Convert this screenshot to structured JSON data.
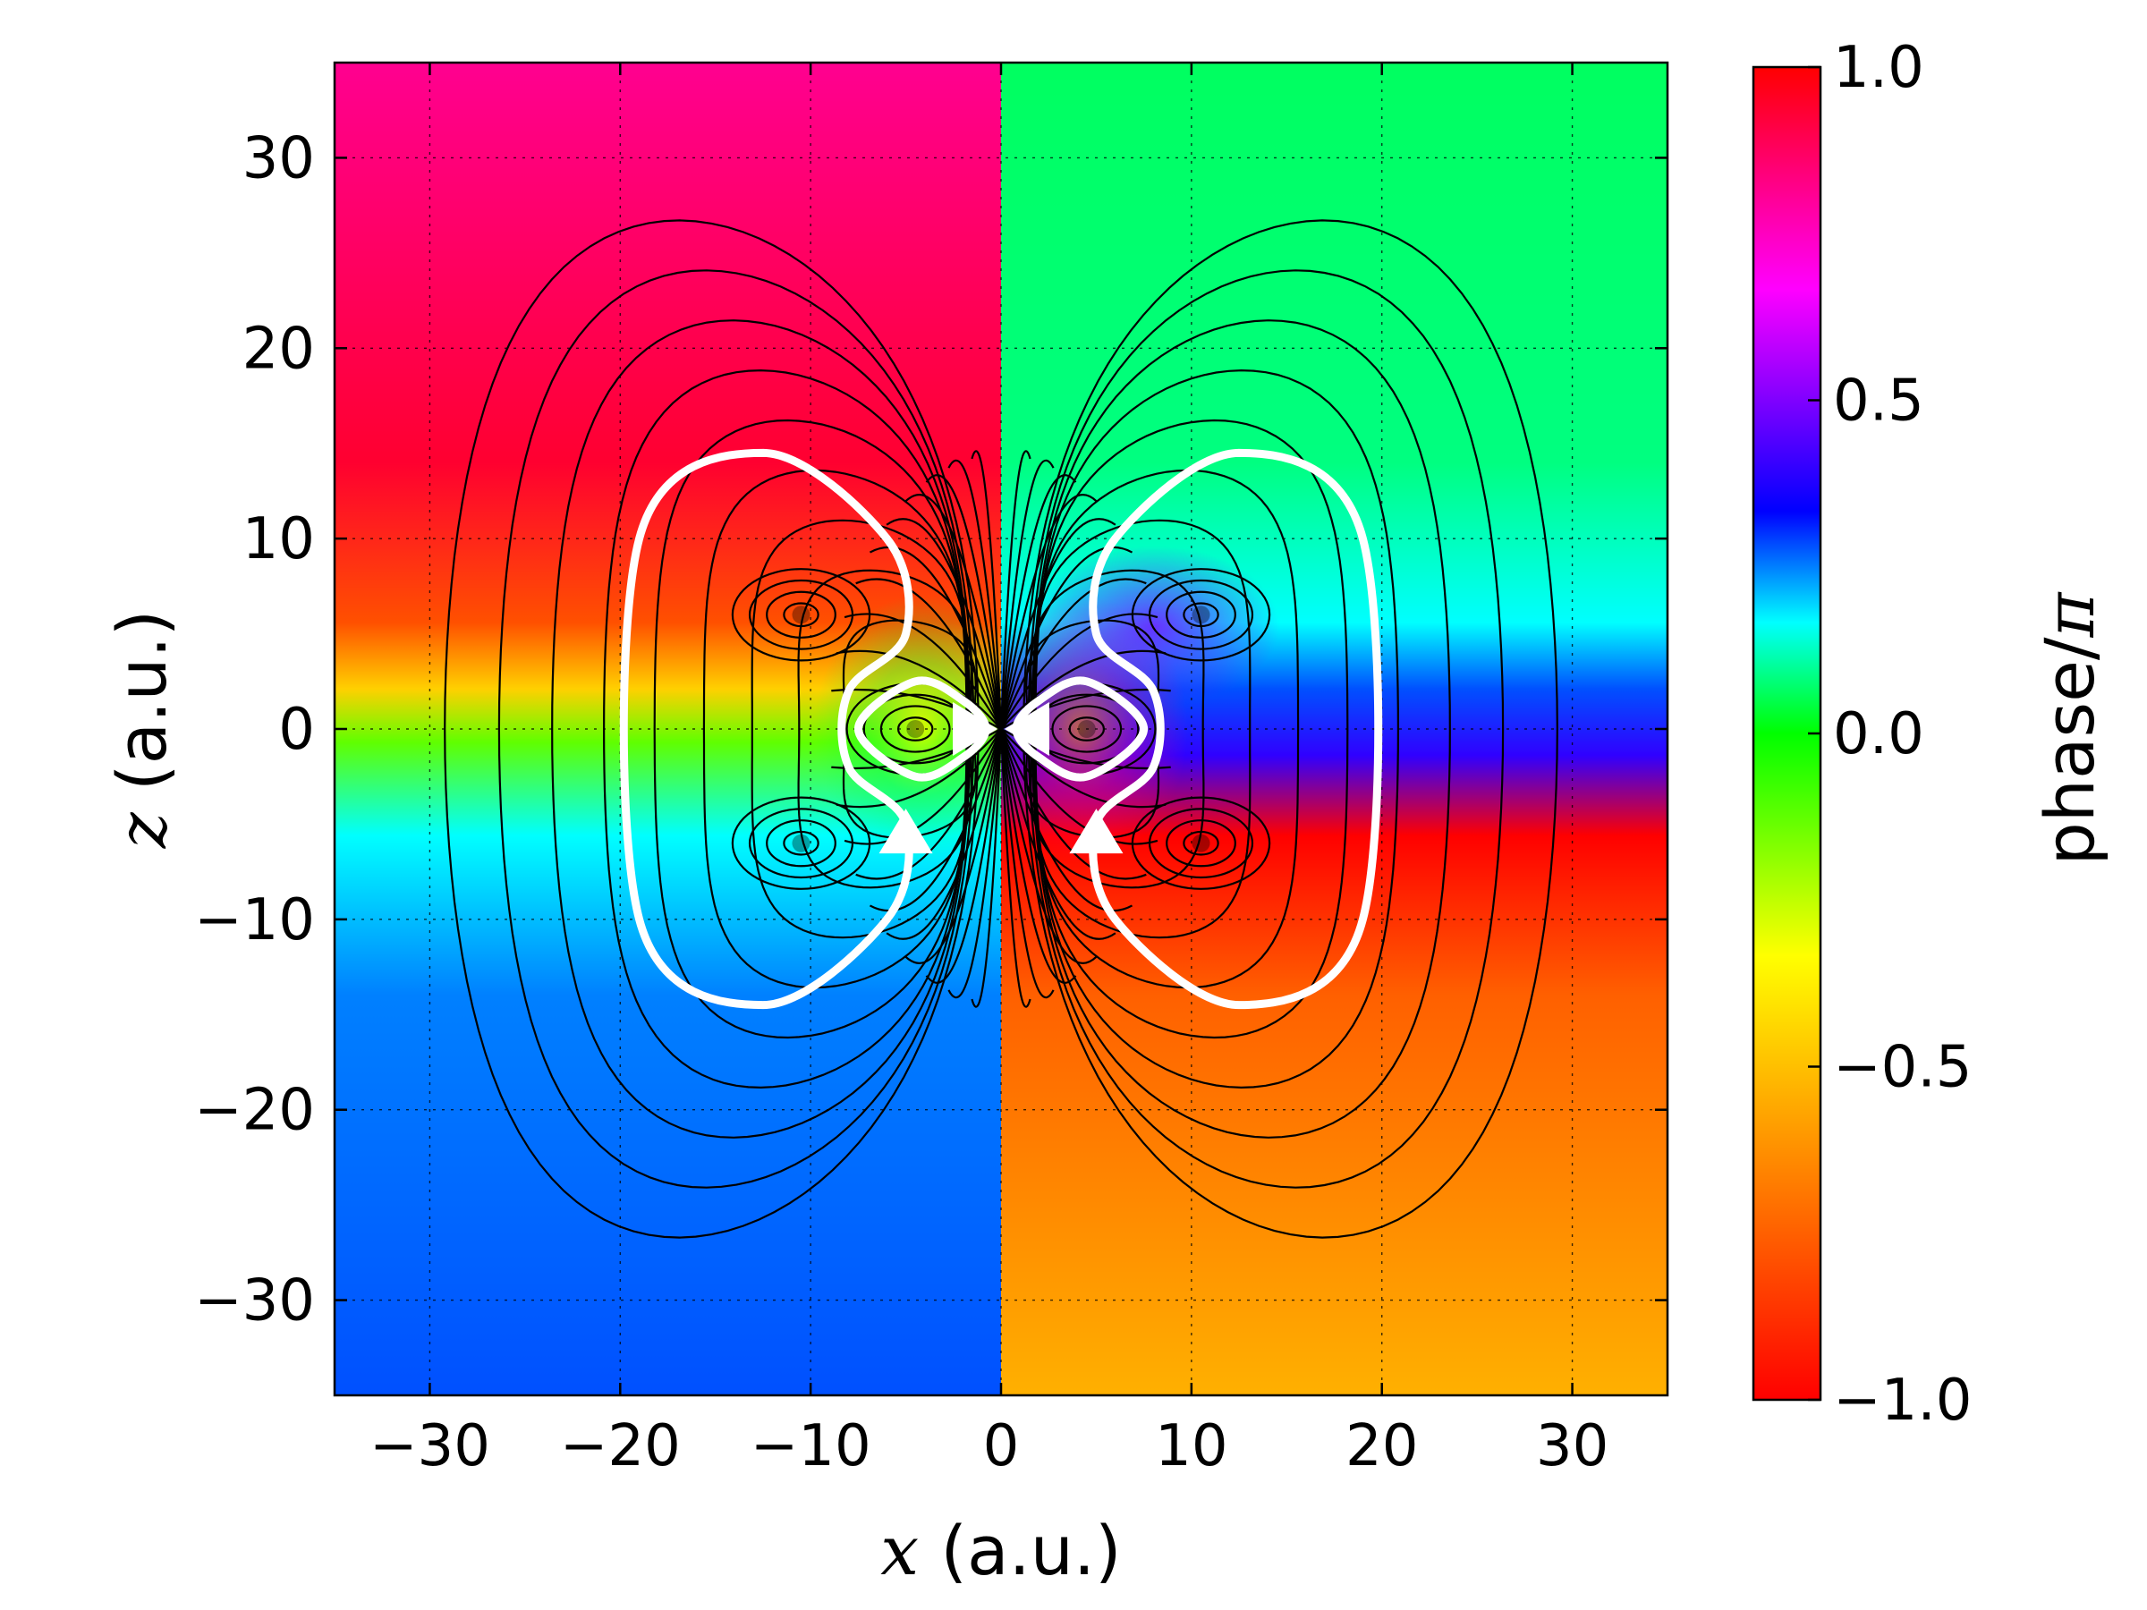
{
  "chart_data": {
    "type": "heatmap",
    "title": "",
    "xlabel": {
      "symbol": "x",
      "unit": "(a.u.)"
    },
    "ylabel": {
      "symbol": "z",
      "unit": "(a.u.)"
    },
    "xlim": [
      -35,
      35
    ],
    "ylim": [
      -35,
      35
    ],
    "x_ticks": [
      -30,
      -20,
      -10,
      0,
      10,
      20,
      30
    ],
    "y_ticks": [
      -30,
      -20,
      -10,
      0,
      10,
      20,
      30
    ],
    "x_tick_labels": [
      "−30",
      "−20",
      "−10",
      "0",
      "10",
      "20",
      "30"
    ],
    "y_tick_labels": [
      "−30",
      "−20",
      "−10",
      "0",
      "10",
      "20",
      "30"
    ],
    "grid": true,
    "colorbar": {
      "label": {
        "text": "phase/",
        "symbol": "π"
      },
      "range": [
        -1.0,
        1.0
      ],
      "ticks": [
        -1.0,
        -0.5,
        0.0,
        0.5,
        1.0
      ],
      "tick_labels": [
        "−1.0",
        "−0.5",
        "0.0",
        "0.5",
        "1.0"
      ],
      "colormap": "hsv",
      "stops": [
        "#ff0000",
        "#ff8000",
        "#ffff00",
        "#00ff00",
        "#00ffff",
        "#0000ff",
        "#ff00ff",
        "#ff0000"
      ]
    },
    "contour_color": "#000000",
    "streamline_color": "#ffffff",
    "vortex_points": [
      {
        "x": -10.5,
        "z": 6.0
      },
      {
        "x": -10.5,
        "z": -6.0
      },
      {
        "x": 10.5,
        "z": 6.0
      },
      {
        "x": 10.5,
        "z": -6.0
      },
      {
        "x": -4.5,
        "z": 0.0
      },
      {
        "x": 4.5,
        "z": 0.0
      }
    ],
    "streamlines": [
      {
        "name": "outer-left",
        "points": [
          [
            -12.5,
            14.5
          ],
          [
            -19,
            10
          ],
          [
            -19,
            -10
          ],
          [
            -12.5,
            -14.5
          ],
          [
            -6,
            -10
          ],
          [
            -5,
            -5
          ],
          [
            -8,
            -2
          ],
          [
            -8,
            2
          ],
          [
            -5,
            5
          ],
          [
            -6,
            10
          ]
        ]
      },
      {
        "name": "outer-right",
        "points": [
          [
            12.5,
            14.5
          ],
          [
            19,
            10
          ],
          [
            19,
            -10
          ],
          [
            12.5,
            -14.5
          ],
          [
            6,
            -10
          ],
          [
            5,
            -5
          ],
          [
            8,
            -2
          ],
          [
            8,
            2
          ],
          [
            5,
            5
          ],
          [
            6,
            10
          ]
        ]
      },
      {
        "name": "inner-left",
        "points": [
          [
            -7.5,
            0
          ],
          [
            -4.5,
            2.5
          ],
          [
            -2,
            1.5
          ],
          [
            -0.8,
            0
          ],
          [
            -2,
            -1.5
          ],
          [
            -4.5,
            -2.5
          ]
        ]
      },
      {
        "name": "inner-right",
        "points": [
          [
            7.5,
            0
          ],
          [
            4.5,
            2.5
          ],
          [
            2,
            1.5
          ],
          [
            0.8,
            0
          ],
          [
            2,
            -1.5
          ],
          [
            4.5,
            -2.5
          ]
        ]
      }
    ],
    "arrows": [
      {
        "x": -1.5,
        "z": 0,
        "direction": "right"
      },
      {
        "x": 1.5,
        "z": 0,
        "direction": "left"
      },
      {
        "x": -5,
        "z": -5.5,
        "direction": "up"
      },
      {
        "x": 5,
        "z": -5.5,
        "direction": "up"
      }
    ]
  }
}
